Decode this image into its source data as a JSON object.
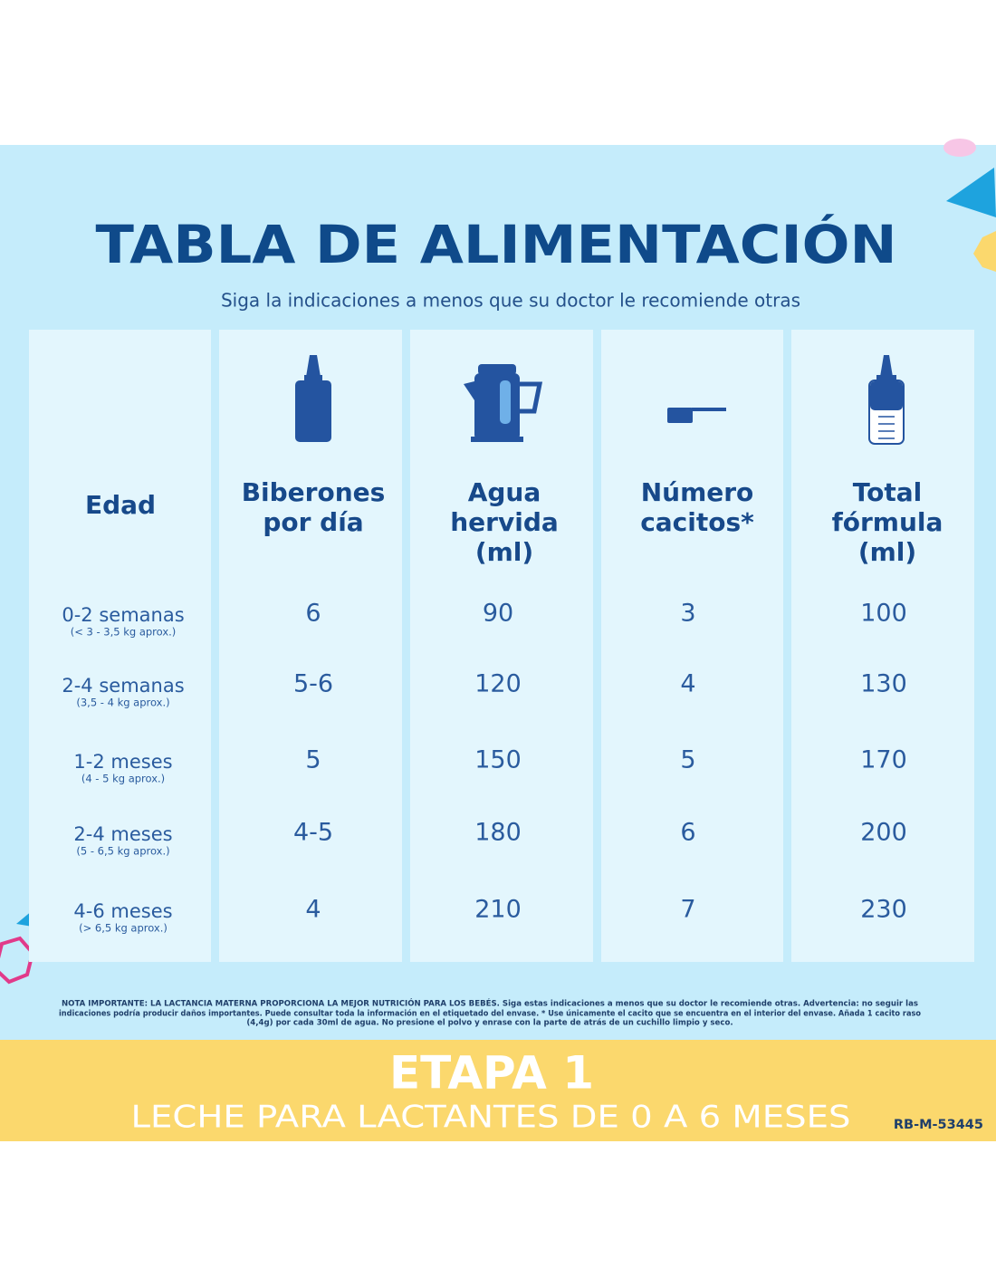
{
  "header": {
    "title": "TABLA DE ALIMENTACIÓN",
    "subtitle": "Siga la indicaciones a menos que su doctor le recomiende otras"
  },
  "table": {
    "columns": [
      [
        "Edad"
      ],
      [
        "Biberones",
        "por día"
      ],
      [
        "Agua",
        "hervida",
        "(ml)"
      ],
      [
        "Número",
        "cacitos*"
      ],
      [
        "Total",
        "fórmula",
        "(ml)"
      ]
    ],
    "rows": [
      {
        "age": "0-2 semanas",
        "weight": "(< 3 - 3,5 kg aprox.)",
        "cells": [
          "6",
          "90",
          "3",
          "100"
        ]
      },
      {
        "age": "2-4 semanas",
        "weight": "(3,5 - 4 kg aprox.)",
        "cells": [
          "5-6",
          "120",
          "4",
          "130"
        ]
      },
      {
        "age": "1-2 meses",
        "weight": "(4 - 5 kg aprox.)",
        "cells": [
          "5",
          "150",
          "5",
          "170"
        ]
      },
      {
        "age": "2-4 meses",
        "weight": "(5 - 6,5 kg aprox.)",
        "cells": [
          "4-5",
          "180",
          "6",
          "200"
        ]
      },
      {
        "age": "4-6 meses",
        "weight": "(> 6,5 kg aprox.)",
        "cells": [
          "4",
          "210",
          "7",
          "230"
        ]
      }
    ]
  },
  "note": [
    "NOTA IMPORTANTE: LA LACTANCIA MATERNA PROPORCIONA LA MEJOR NUTRICIÓN PARA LOS BEBÉS. Siga estas indicaciones a menos que su doctor le recomiende otras. Advertencia: no seguir las",
    "indicaciones podría producir daños importantes. Puede consultar toda la información en el etiquetado del envase. * Use únicamente el cacito que se encuentra en el interior del envase. Añada 1 cacito raso",
    "(4,4g) por cada 30ml de agua. No presione el polvo y enrase con la parte de atrás de un cuchillo limpio y seco."
  ],
  "footer": {
    "stage": "ETAPA 1",
    "product": "LECHE PARA LACTANTES DE 0 A 6 MESES",
    "code": "RB-M-53445"
  }
}
